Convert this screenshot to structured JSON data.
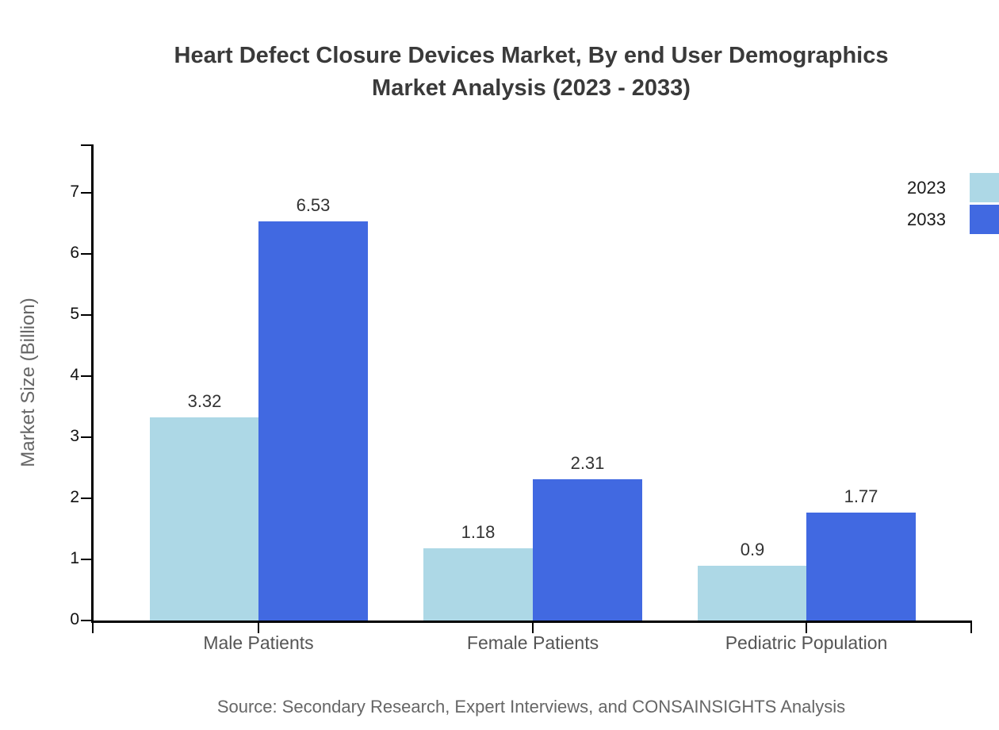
{
  "header": {
    "title_line1": "Heart Defect Closure Devices Market, By end User Demographics",
    "title_line2": "Market Analysis (2023 - 2033)"
  },
  "footer": {
    "source": "Source: Secondary Research, Expert Interviews, and CONSAINSIGHTS Analysis"
  },
  "chart_data": {
    "type": "bar",
    "title": "Heart Defect Closure Devices Market, By end User Demographics Market Analysis (2023 - 2033)",
    "categories": [
      "Male Patients",
      "Female Patients",
      "Pediatric Population"
    ],
    "series": [
      {
        "name": "2023",
        "color": "#add8e6",
        "values": [
          3.32,
          1.18,
          0.9
        ],
        "labels": [
          "3.32",
          "1.18",
          "0.9"
        ]
      },
      {
        "name": "2033",
        "color": "#4169e1",
        "values": [
          6.53,
          2.31,
          1.77
        ],
        "labels": [
          "6.53",
          "2.31",
          "1.77"
        ]
      }
    ],
    "xlabel": "",
    "ylabel": "Market Size (Billion)",
    "yticks": [
      0,
      1,
      2,
      3,
      4,
      5,
      6,
      7
    ],
    "ylim": [
      0,
      7.8
    ],
    "grid": false,
    "legend_position": "top-right",
    "colors": {
      "axis": "#000000",
      "title_text": "#3a3a3a",
      "tick_label_text": "#111111",
      "category_label_text": "#555555",
      "value_label_text": "#333333",
      "source_text": "#666666"
    }
  }
}
